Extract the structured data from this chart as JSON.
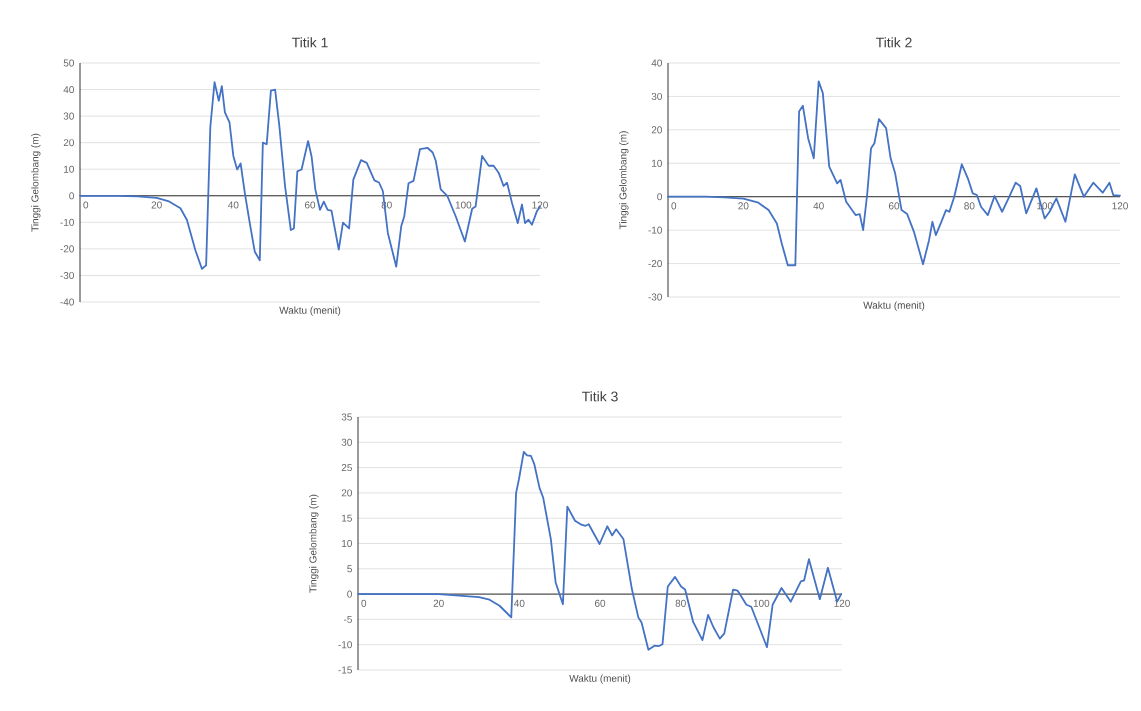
{
  "chart_data": [
    {
      "type": "line",
      "title": "Titik 1",
      "xlabel": "Waktu (menit)",
      "ylabel": "Tinggi Gelombang (m)",
      "color": "#4472c4",
      "grid": "y",
      "xlim": [
        0,
        120
      ],
      "ylim": [
        -40,
        50
      ],
      "xticks": [
        0,
        20,
        40,
        60,
        80,
        100,
        120
      ],
      "yticks": [
        -40,
        -30,
        -20,
        -10,
        0,
        10,
        20,
        30,
        40,
        50
      ],
      "x": [
        0,
        10,
        15,
        20,
        23,
        26.2,
        27.9,
        30.1,
        31.8,
        32.9,
        34,
        35.1,
        36.2,
        37,
        37.8,
        39,
        40,
        41,
        41.9,
        43,
        44.3,
        45.6,
        46.9,
        47.7,
        48.7,
        49.8,
        50.9,
        52,
        53.5,
        55,
        55.8,
        56.7,
        57.8,
        59.5,
        60.4,
        61.4,
        62.6,
        63.6,
        64.6,
        65.6,
        67.5,
        68.6,
        70.2,
        71.3,
        73.3,
        74.8,
        76.8,
        78,
        79,
        80.3,
        82.5,
        83.8,
        84.6,
        85.7,
        87,
        88.7,
        90.7,
        92,
        92.8,
        94.1,
        95.8,
        98,
        100.4,
        102.3,
        103.2,
        104.9,
        106.6,
        107.9,
        109.2,
        110.5,
        111.4,
        112.7,
        114.2,
        115.3,
        116.1,
        117,
        117.9,
        119.2,
        120
      ],
      "values": [
        0,
        0,
        -0.2,
        -0.8,
        -2,
        -4.7,
        -9.1,
        -20.5,
        -27.5,
        -26.2,
        26,
        42.8,
        35.8,
        41.3,
        31.4,
        27.6,
        15,
        9.9,
        12.2,
        1,
        -10.4,
        -21.1,
        -24.3,
        20,
        19.4,
        39.6,
        40,
        26.3,
        3.5,
        -12.9,
        -12.3,
        9.2,
        9.9,
        20.6,
        14.9,
        2.3,
        -5.3,
        -2.2,
        -5.3,
        -5.6,
        -20.3,
        -10.1,
        -12.3,
        6.1,
        13.4,
        12.4,
        5.8,
        5,
        1.8,
        -14,
        -26.7,
        -11.5,
        -7.7,
        4.7,
        5.6,
        17.6,
        18,
        16.3,
        13.2,
        2.4,
        0,
        -7.7,
        -17.2,
        -4.9,
        -4,
        15,
        11.3,
        11.3,
        8.7,
        3.7,
        4.9,
        -2.7,
        -10.3,
        -3.3,
        -10.3,
        -9,
        -10.9,
        -5.8,
        -4
      ]
    },
    {
      "type": "line",
      "title": "Titik 2",
      "xlabel": "Waktu (menit)",
      "ylabel": "Tinggi Gelombang (m)",
      "color": "#4472c4",
      "grid": "y",
      "xlim": [
        0,
        120
      ],
      "ylim": [
        -30,
        40
      ],
      "xticks": [
        0,
        20,
        40,
        60,
        80,
        100,
        120
      ],
      "yticks": [
        -30,
        -20,
        -10,
        0,
        10,
        20,
        30,
        40
      ],
      "x": [
        0,
        10,
        15,
        20,
        24,
        26.7,
        28.9,
        30.2,
        31.8,
        33.8,
        34.8,
        35.8,
        37.2,
        38.7,
        40,
        41.1,
        42.8,
        44.9,
        45.8,
        47.3,
        49.8,
        50.9,
        51.8,
        52.9,
        53.9,
        54.8,
        56,
        57.9,
        59.1,
        60.3,
        62,
        63.5,
        65.3,
        67.7,
        69.3,
        70.2,
        71.1,
        72.4,
        73.8,
        74.7,
        76,
        78,
        79.6,
        80.9,
        82,
        83.1,
        84.9,
        86.7,
        88.7,
        90.4,
        92.3,
        93.5,
        95.1,
        97.8,
        100,
        101.3,
        103.1,
        105.5,
        108,
        110.4,
        112.9,
        115.4,
        117.2,
        118.2,
        120
      ],
      "values": [
        0,
        0,
        -0.2,
        -0.6,
        -1.8,
        -4,
        -8,
        -14,
        -20.5,
        -20.5,
        25.5,
        27.2,
        17.5,
        11.5,
        34.5,
        31,
        9,
        4,
        5,
        -1.5,
        -5.5,
        -5.2,
        -10,
        1,
        14.5,
        16,
        23.2,
        20.5,
        11.5,
        7,
        -4,
        -5.2,
        -10.5,
        -20.2,
        -13,
        -7.5,
        -11.5,
        -8,
        -4,
        -4.5,
        0,
        9.7,
        5.5,
        1,
        0.5,
        -3,
        -5.5,
        0.2,
        -4.5,
        -0.5,
        4.2,
        3.2,
        -5,
        2.5,
        -6.5,
        -4.5,
        -0.5,
        -7.5,
        6.7,
        0,
        4.2,
        1.2,
        4.2,
        0.5,
        0.3
      ]
    },
    {
      "type": "line",
      "title": "Titik 3",
      "xlabel": "Waktu (menit)",
      "ylabel": "Tinggi Gelombang (m)",
      "color": "#4472c4",
      "grid": "y",
      "xlim": [
        0,
        120
      ],
      "ylim": [
        -15,
        35
      ],
      "xticks": [
        0,
        20,
        40,
        60,
        80,
        100,
        120
      ],
      "yticks": [
        -15,
        -10,
        -5,
        0,
        5,
        10,
        15,
        20,
        25,
        30,
        35
      ],
      "x": [
        0,
        10,
        20,
        25,
        30,
        32.6,
        35.1,
        38,
        39.2,
        39.9,
        41.1,
        41.9,
        42.9,
        43.7,
        45,
        45.9,
        47.8,
        49,
        50.8,
        51.9,
        53.8,
        55.2,
        56.4,
        57.2,
        59.9,
        61.8,
        63,
        64,
        65.8,
        67.9,
        69.5,
        70.3,
        72,
        73.5,
        74.5,
        75.5,
        76.8,
        78.6,
        80.1,
        81.1,
        83.1,
        85.4,
        86.8,
        88.1,
        89.7,
        90.8,
        93,
        94.1,
        96.3,
        97.5,
        99.6,
        101.4,
        102.8,
        105,
        107.3,
        109.8,
        110.6,
        111.8,
        114.5,
        116.5,
        118.8,
        119.8
      ],
      "values": [
        0,
        0,
        0,
        -0.3,
        -0.6,
        -1.1,
        -2.3,
        -4.6,
        20,
        22.7,
        28.1,
        27.4,
        27.3,
        25.7,
        21,
        19.1,
        10.9,
        2.3,
        -2,
        17.3,
        14.5,
        13.8,
        13.5,
        13.8,
        9.9,
        13.4,
        11.6,
        12.8,
        10.9,
        1,
        -4.6,
        -5.6,
        -11,
        -10.2,
        -10.3,
        -9.9,
        1.5,
        3.4,
        1.5,
        0.9,
        -5.5,
        -9.1,
        -4.1,
        -6.5,
        -8.8,
        -7.8,
        0.9,
        0.7,
        -2.1,
        -2.5,
        -6.8,
        -10.5,
        -2.1,
        1.2,
        -1.5,
        2.5,
        2.7,
        6.9,
        -1,
        5.2,
        -1.5,
        0
      ]
    }
  ]
}
